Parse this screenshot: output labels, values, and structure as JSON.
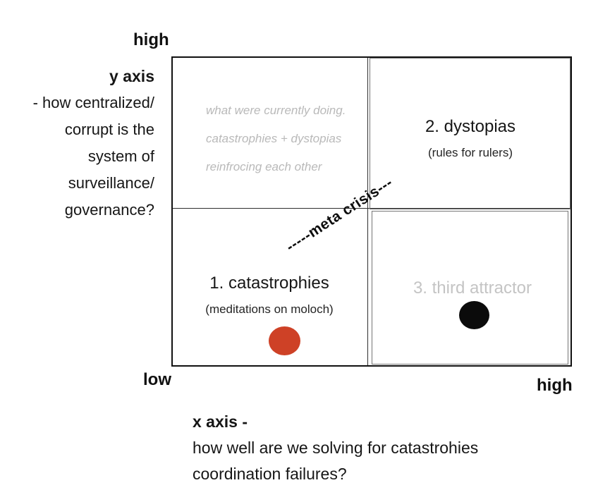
{
  "diagram": {
    "type": "2x2-quadrant-diagram",
    "background": "#ffffff",
    "grid_line_color": "#111111"
  },
  "axes": {
    "y_high": "high",
    "origin_low": "low",
    "x_high": "high",
    "y_title": "y axis",
    "y_question": [
      "- how centralized/",
      "corrupt is the",
      "system of",
      "surveillance/",
      "governance?"
    ],
    "x_title": "x axis -",
    "x_question": [
      "how well are we solving for catastrohies",
      "coordination failures?"
    ]
  },
  "quadrants": {
    "top_left_note": {
      "lines": [
        "what were currently doing.",
        "catastrophies + dystopias",
        "reinfrocing each other"
      ],
      "color": "#b9b9b9"
    },
    "dystopias": {
      "title": "2. dystopias",
      "subtitle": "(rules for rulers)"
    },
    "catastrophies": {
      "title": "1. catastrophies",
      "subtitle": "(meditations on moloch)"
    },
    "third_attractor": {
      "title": "3. third attractor",
      "color": "#c4c4c4"
    }
  },
  "markers": {
    "catastrophies_dot": {
      "color": "#ce4126"
    },
    "third_attractor_dot": {
      "color": "#0b0b0b"
    }
  },
  "meta_crisis_label": "-----meta crisis---"
}
